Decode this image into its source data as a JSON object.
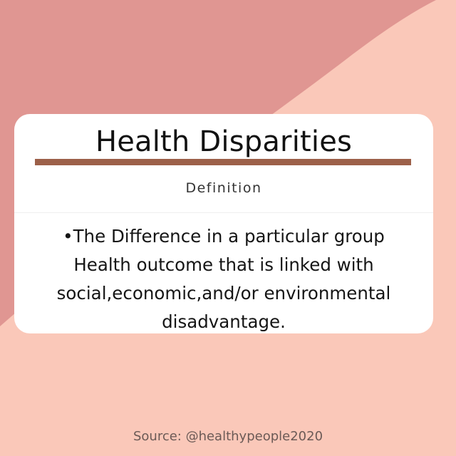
{
  "colors": {
    "background_dark": "#e09692",
    "background_light": "#fac8b9",
    "accent_rule": "#9c6049",
    "card": "#ffffff",
    "source_text": "#6b5a56"
  },
  "card": {
    "title": "Health Disparities",
    "subtitle": "Definition",
    "body": "•The Difference in a particular  group\nHealth outcome that is linked with\nsocial,economic,and/or environmental\ndisadvantage."
  },
  "footer": {
    "source": "Source: @healthypeople2020"
  }
}
